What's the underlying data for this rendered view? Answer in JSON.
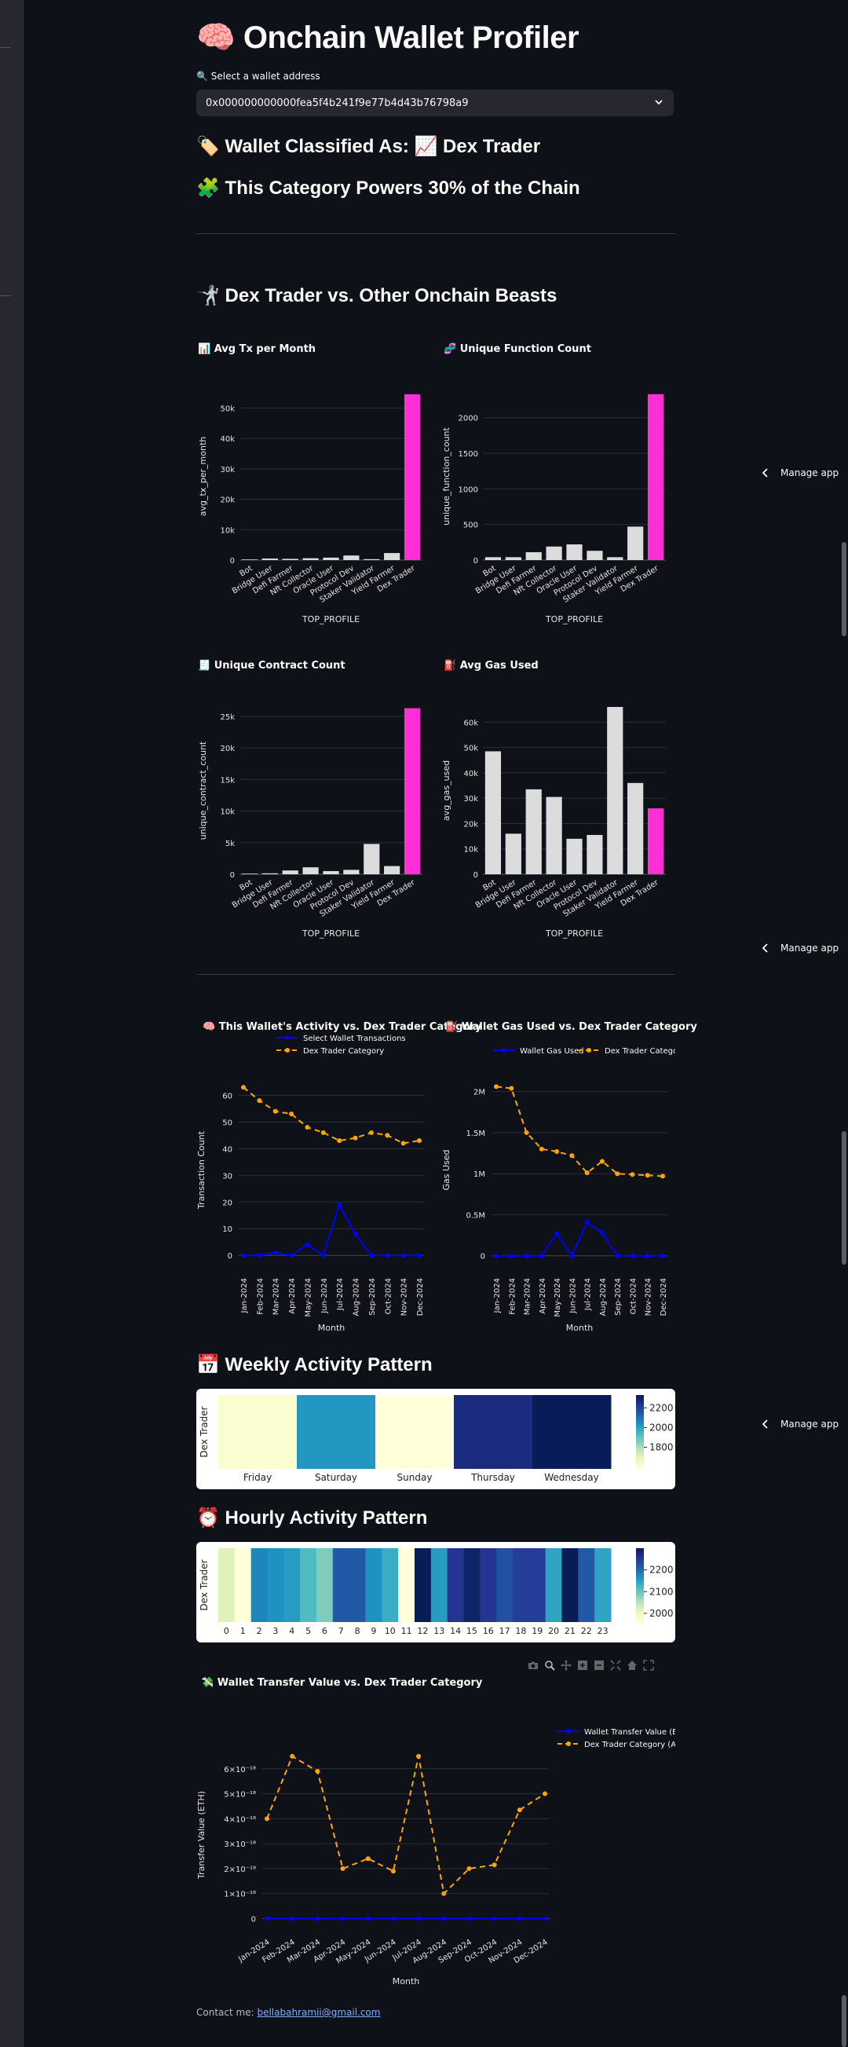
{
  "app": {
    "title": "🧠 Onchain Wallet Profiler",
    "select_label": "🔍 Select a wallet address",
    "selected_wallet": "0x000000000000fea5f4b241f9e77b4d43b76798a9",
    "classified": "🏷️ Wallet Classified As: 📈 Dex Trader",
    "powers": "🧩 This Category Powers 30% of the Chain",
    "vs_heading": "🤺 Dex Trader vs. Other Onchain Beasts",
    "manage_app": "Manage app",
    "weekly_heading": "📅 Weekly Activity Pattern",
    "hourly_heading": "⏰ Hourly Activity Pattern",
    "contact_prefix": "Contact me:",
    "contact_email": "bellabahramii@gmail.com"
  },
  "chart_data": [
    {
      "type": "bar",
      "title": "📊 Avg Tx per Month",
      "xlabel": "TOP_PROFILE",
      "ylabel": "avg_tx_per_month",
      "categories": [
        "Bot",
        "Bridge User",
        "Defi Farmer",
        "Nft Collector",
        "Oracle User",
        "Protocol Dev",
        "Staker Validator",
        "Yield Farmer",
        "Dex Trader"
      ],
      "values": [
        200,
        500,
        400,
        600,
        800,
        1500,
        300,
        2300,
        54500
      ],
      "highlight": "Dex Trader",
      "ylim": [
        0,
        55000
      ],
      "yticks": [
        0,
        10000,
        20000,
        30000,
        40000,
        50000
      ],
      "ytick_labels": [
        "0",
        "10k",
        "20k",
        "30k",
        "40k",
        "50k"
      ]
    },
    {
      "type": "bar",
      "title": "🧬 Unique Function Count",
      "xlabel": "TOP_PROFILE",
      "ylabel": "unique_function_count",
      "categories": [
        "Bot",
        "Bridge User",
        "Defi Farmer",
        "Nft Collector",
        "Oracle User",
        "Protocol Dev",
        "Staker Validator",
        "Yield Farmer",
        "Dex Trader"
      ],
      "values": [
        40,
        40,
        110,
        190,
        220,
        130,
        40,
        470,
        2330
      ],
      "highlight": "Dex Trader",
      "ylim": [
        0,
        2350
      ],
      "yticks": [
        0,
        500,
        1000,
        1500,
        2000
      ],
      "ytick_labels": [
        "0",
        "500",
        "1000",
        "1500",
        "2000"
      ]
    },
    {
      "type": "bar",
      "title": "🧾 Unique Contract Count",
      "xlabel": "TOP_PROFILE",
      "ylabel": "unique_contract_count",
      "categories": [
        "Bot",
        "Bridge User",
        "Defi Farmer",
        "Nft Collector",
        "Oracle User",
        "Protocol Dev",
        "Staker Validator",
        "Yield Farmer",
        "Dex Trader"
      ],
      "values": [
        100,
        150,
        600,
        1100,
        500,
        700,
        4800,
        1300,
        26300
      ],
      "highlight": "Dex Trader",
      "ylim": [
        0,
        26500
      ],
      "yticks": [
        0,
        5000,
        10000,
        15000,
        20000,
        25000
      ],
      "ytick_labels": [
        "0",
        "5k",
        "10k",
        "15k",
        "20k",
        "25k"
      ]
    },
    {
      "type": "bar",
      "title": "⛽ Avg Gas Used",
      "xlabel": "TOP_PROFILE",
      "ylabel": "avg_gas_used",
      "categories": [
        "Bot",
        "Bridge User",
        "Defi Farmer",
        "Nft Collector",
        "Oracle User",
        "Protocol Dev",
        "Staker Validator",
        "Yield Farmer",
        "Dex Trader"
      ],
      "values": [
        48500,
        16000,
        33500,
        30500,
        14000,
        15500,
        66000,
        36000,
        26000
      ],
      "highlight": "Dex Trader",
      "ylim": [
        0,
        66000
      ],
      "yticks": [
        0,
        10000,
        20000,
        30000,
        40000,
        50000,
        60000
      ],
      "ytick_labels": [
        "0",
        "10k",
        "20k",
        "30k",
        "40k",
        "50k",
        "60k"
      ]
    },
    {
      "type": "line",
      "title": "🧠 This Wallet's Activity vs. Dex Trader Category",
      "xlabel": "Month",
      "ylabel": "Transaction Count",
      "x": [
        "Jan-2024",
        "Feb-2024",
        "Mar-2024",
        "Apr-2024",
        "May-2024",
        "Jun-2024",
        "Jul-2024",
        "Aug-2024",
        "Sep-2024",
        "Oct-2024",
        "Nov-2024",
        "Dec-2024"
      ],
      "series": [
        {
          "name": "Select Wallet Transactions",
          "values": [
            0,
            0,
            1,
            0,
            4,
            0,
            19,
            8,
            0,
            0,
            0,
            0
          ],
          "color": "#0000ff",
          "dash": false
        },
        {
          "name": "Dex Trader Category",
          "values": [
            63,
            58,
            54,
            53,
            48,
            46,
            43,
            44,
            46,
            45,
            42,
            43
          ],
          "color": "#ffa500",
          "dash": true
        }
      ],
      "ylim": [
        -2,
        66
      ],
      "yticks": [
        0,
        10,
        20,
        30,
        40,
        50,
        60
      ],
      "ytick_labels": [
        "0",
        "10",
        "20",
        "30",
        "40",
        "50",
        "60"
      ]
    },
    {
      "type": "line",
      "title": "⛽ Wallet Gas Used vs. Dex Trader Category",
      "xlabel": "Month",
      "ylabel": "Gas Used",
      "x": [
        "Jan-2024",
        "Feb-2024",
        "Mar-2024",
        "Apr-2024",
        "May-2024",
        "Jun-2024",
        "Jul-2024",
        "Aug-2024",
        "Sep-2024",
        "Oct-2024",
        "Nov-2024",
        "Dec-2024"
      ],
      "series": [
        {
          "name": "Wallet Gas Used",
          "values": [
            0,
            0,
            0,
            0,
            270000,
            0,
            410000,
            280000,
            0,
            0,
            0,
            0
          ],
          "color": "#0000ff",
          "dash": false
        },
        {
          "name": "Dex Trader Category",
          "values": [
            2060000,
            2040000,
            1500000,
            1300000,
            1270000,
            1220000,
            1010000,
            1150000,
            1000000,
            990000,
            980000,
            970000
          ],
          "color": "#ffa500",
          "dash": true
        }
      ],
      "ylim": [
        -60000,
        2150000
      ],
      "yticks": [
        0,
        500000,
        1000000,
        1500000,
        2000000
      ],
      "ytick_labels": [
        "0",
        "0.5M",
        "1M",
        "1.5M",
        "2M"
      ]
    },
    {
      "type": "heatmap",
      "ylabel": "Dex Trader",
      "x": [
        "Friday",
        "Saturday",
        "Sunday",
        "Thursday",
        "Wednesday"
      ],
      "values": [
        1610,
        2030,
        1580,
        2270,
        2330
      ],
      "colorbar_range": [
        1580,
        2330
      ],
      "colorbar_ticks": [
        1800,
        2000,
        2200
      ],
      "colorbar_labels": [
        "1800",
        "2000",
        "2200"
      ]
    },
    {
      "type": "heatmap",
      "ylabel": "Dex Trader",
      "x": [
        "0",
        "1",
        "2",
        "3",
        "4",
        "5",
        "6",
        "7",
        "8",
        "9",
        "10",
        "11",
        "12",
        "13",
        "14",
        "15",
        "16",
        "17",
        "18",
        "19",
        "20",
        "21",
        "22",
        "23"
      ],
      "values": [
        2020,
        1960,
        2180,
        2170,
        2160,
        2120,
        2090,
        2220,
        2220,
        2170,
        2140,
        1960,
        2300,
        2160,
        2260,
        2290,
        2260,
        2230,
        2250,
        2250,
        2150,
        2300,
        2220,
        2150
      ],
      "colorbar_range": [
        1960,
        2300
      ],
      "colorbar_ticks": [
        2000,
        2100,
        2200
      ],
      "colorbar_labels": [
        "2000",
        "2100",
        "2200"
      ]
    },
    {
      "type": "line",
      "title": "💸 Wallet Transfer Value vs. Dex Trader Category",
      "xlabel": "Month",
      "ylabel": "Transfer Value (ETH)",
      "x": [
        "Jan-2024",
        "Feb-2024",
        "Mar-2024",
        "Apr-2024",
        "May-2024",
        "Jun-2024",
        "Jul-2024",
        "Aug-2024",
        "Sep-2024",
        "Oct-2024",
        "Nov-2024",
        "Dec-2024"
      ],
      "series": [
        {
          "name": "Wallet Transfer Value (ETH)",
          "values": [
            0,
            0,
            0,
            0,
            0,
            0,
            0,
            0,
            0,
            0,
            0,
            0
          ],
          "color": "#0000ff",
          "dash": false
        },
        {
          "name": "Dex Trader Category (Avg)",
          "values": [
            4e-18,
            6.5e-18,
            5.9e-18,
            2e-18,
            2.4e-18,
            1.9e-18,
            6.5e-18,
            1e-18,
            2e-18,
            2.15e-18,
            4.35e-18,
            5e-18
          ],
          "color": "#ffa500",
          "dash": true
        }
      ],
      "ylim": [
        -3e-19,
        7e-18
      ],
      "yticks": [
        0,
        1e-18,
        2e-18,
        3e-18,
        4e-18,
        5e-18,
        6e-18
      ],
      "ytick_labels": [
        "0",
        "1×10⁻¹⁸",
        "2×10⁻¹⁸",
        "3×10⁻¹⁸",
        "4×10⁻¹⁸",
        "5×10⁻¹⁸",
        "6×10⁻¹⁸"
      ]
    }
  ]
}
